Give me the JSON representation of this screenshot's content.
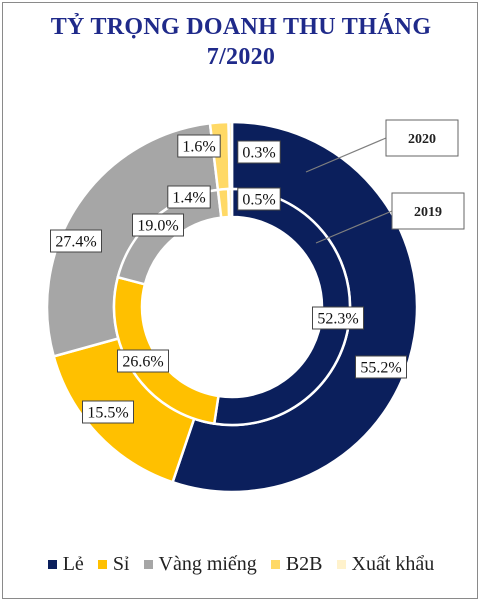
{
  "title": {
    "line1": "TỶ TRỌNG DOANH THU THÁNG",
    "line2": "7/2020"
  },
  "chart_data": {
    "type": "donut",
    "categories": [
      "Lẻ",
      "Sỉ",
      "Vàng miếng",
      "B2B",
      "Xuất khẩu"
    ],
    "colors": [
      "#0b1f5c",
      "#ffc000",
      "#a6a6a6",
      "#ffd966",
      "#fff2cc"
    ],
    "series": [
      {
        "name": "2020",
        "ring": "outer",
        "values": [
          55.2,
          15.5,
          27.4,
          1.6,
          0.3
        ],
        "labels": [
          "55.2%",
          "15.5%",
          "27.4%",
          "1.6%",
          "0.3%"
        ]
      },
      {
        "name": "2019",
        "ring": "inner",
        "values": [
          52.3,
          26.6,
          19.0,
          1.4,
          0.5
        ],
        "labels": [
          "52.3%",
          "26.6%",
          "19.0%",
          "1.4%",
          "0.5%"
        ]
      }
    ],
    "legend": {
      "position": "bottom",
      "items": [
        "Lẻ",
        "Sỉ",
        "Vàng miếng",
        "B2B",
        "Xuất khẩu"
      ]
    },
    "annotations": [
      "2020",
      "2019"
    ]
  }
}
